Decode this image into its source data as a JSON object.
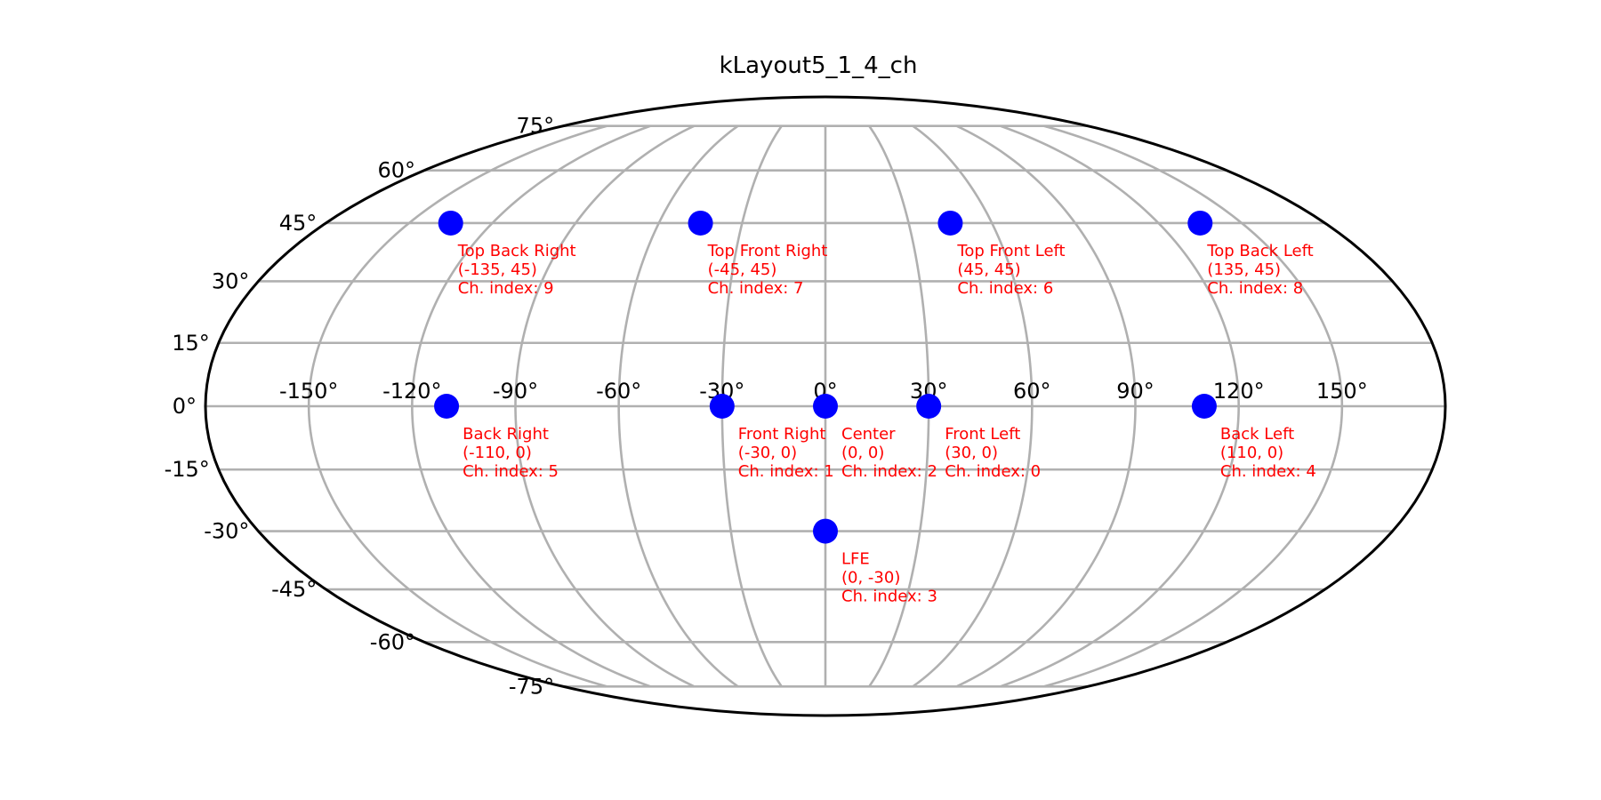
{
  "chart_data": {
    "type": "scatter",
    "projection": "mollweide",
    "title": "kLayout5_1_4_ch",
    "xlabel": "",
    "ylabel": "",
    "grid": true,
    "xlim": [
      -180,
      180
    ],
    "ylim": [
      -90,
      90
    ],
    "x_ticks": [
      {
        "value": -150,
        "label": "-150°"
      },
      {
        "value": -120,
        "label": "-120°"
      },
      {
        "value": -90,
        "label": "-90°"
      },
      {
        "value": -60,
        "label": "-60°"
      },
      {
        "value": -30,
        "label": "-30°"
      },
      {
        "value": 0,
        "label": "0°"
      },
      {
        "value": 30,
        "label": "30°"
      },
      {
        "value": 60,
        "label": "60°"
      },
      {
        "value": 90,
        "label": "90°"
      },
      {
        "value": 120,
        "label": "120°"
      },
      {
        "value": 150,
        "label": "150°"
      }
    ],
    "y_ticks": [
      {
        "value": 75,
        "label": "75°"
      },
      {
        "value": 60,
        "label": "60°"
      },
      {
        "value": 45,
        "label": "45°"
      },
      {
        "value": 30,
        "label": "30°"
      },
      {
        "value": 15,
        "label": "15°"
      },
      {
        "value": 0,
        "label": "0°"
      },
      {
        "value": -15,
        "label": "-15°"
      },
      {
        "value": -30,
        "label": "-30°"
      },
      {
        "value": -45,
        "label": "-45°"
      },
      {
        "value": -60,
        "label": "-60°"
      },
      {
        "value": -75,
        "label": "-75°"
      }
    ],
    "marker_color": "#0000ff",
    "label_color": "#ff0000",
    "points": [
      {
        "name": "Front Left",
        "azimuth": 30,
        "elevation": 0,
        "coords": "(30, 0)",
        "index_label": "Ch. index: 0"
      },
      {
        "name": "Front Right",
        "azimuth": -30,
        "elevation": 0,
        "coords": "(-30, 0)",
        "index_label": "Ch. index: 1"
      },
      {
        "name": "Center",
        "azimuth": 0,
        "elevation": 0,
        "coords": "(0, 0)",
        "index_label": "Ch. index: 2"
      },
      {
        "name": "LFE",
        "azimuth": 0,
        "elevation": -30,
        "coords": "(0, -30)",
        "index_label": "Ch. index: 3"
      },
      {
        "name": "Back Left",
        "azimuth": 110,
        "elevation": 0,
        "coords": "(110, 0)",
        "index_label": "Ch. index: 4"
      },
      {
        "name": "Back Right",
        "azimuth": -110,
        "elevation": 0,
        "coords": "(-110, 0)",
        "index_label": "Ch. index: 5"
      },
      {
        "name": "Top Front Left",
        "azimuth": 45,
        "elevation": 45,
        "coords": "(45, 45)",
        "index_label": "Ch. index: 6"
      },
      {
        "name": "Top Front Right",
        "azimuth": -45,
        "elevation": 45,
        "coords": "(-45, 45)",
        "index_label": "Ch. index: 7"
      },
      {
        "name": "Top Back Left",
        "azimuth": 135,
        "elevation": 45,
        "coords": "(135, 45)",
        "index_label": "Ch. index: 8"
      },
      {
        "name": "Top Back Right",
        "azimuth": -135,
        "elevation": 45,
        "coords": "(-135, 45)",
        "index_label": "Ch. index: 9"
      }
    ]
  }
}
